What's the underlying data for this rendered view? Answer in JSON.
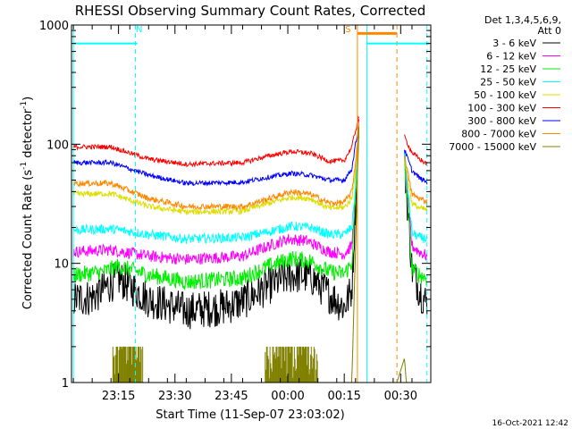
{
  "chart_data": {
    "type": "line",
    "title": "RHESSI Observing Summary Count Rates, Corrected",
    "xlabel": "Start Time (11-Sep-07 23:03:02)",
    "ylabel_parts": [
      "Corrected Count Rate (s",
      "-1",
      " detector",
      "-1",
      ")"
    ],
    "y_scale": "log",
    "ylim": [
      1,
      1000
    ],
    "y_ticks": [
      {
        "value": 1,
        "label": "1"
      },
      {
        "value": 10,
        "label": "10"
      },
      {
        "value": 100,
        "label": "100"
      },
      {
        "value": 1000,
        "label": "1000"
      }
    ],
    "x_range_min": [
      -0.5,
      95
    ],
    "x_ticks": [
      {
        "value": 12,
        "label": "23:15"
      },
      {
        "value": 27,
        "label": "23:30"
      },
      {
        "value": 42,
        "label": "23:45"
      },
      {
        "value": 57,
        "label": "00:00"
      },
      {
        "value": 72,
        "label": "00:15"
      },
      {
        "value": 87,
        "label": "00:30"
      }
    ],
    "legend_header": [
      "Det 1,3,4,5,6,9,",
      "Att 0"
    ],
    "series": [
      {
        "name": "3 - 6 keV",
        "color": "#000000",
        "noise": 0.16,
        "points_a": [
          [
            0,
            5.0
          ],
          [
            5,
            5.2
          ],
          [
            12,
            7.5
          ],
          [
            20,
            5.0
          ],
          [
            30,
            4.0
          ],
          [
            40,
            4.3
          ],
          [
            45,
            4.8
          ],
          [
            52,
            6.5
          ],
          [
            58,
            8.0
          ],
          [
            63,
            7.8
          ],
          [
            68,
            5.5
          ],
          [
            72,
            4.3
          ],
          [
            74,
            6.0
          ],
          [
            75,
            30.0
          ],
          [
            76,
            170.0
          ]
        ],
        "points_b": [
          [
            88,
            70.0
          ],
          [
            90,
            9.0
          ],
          [
            92,
            6.0
          ],
          [
            94,
            4.5
          ]
        ]
      },
      {
        "name": "6 - 12 keV",
        "color": "#ff00ff",
        "noise": 0.05,
        "points_a": [
          [
            0,
            12.5
          ],
          [
            10,
            13.0
          ],
          [
            20,
            11.5
          ],
          [
            30,
            10.8
          ],
          [
            45,
            11.5
          ],
          [
            52,
            14.0
          ],
          [
            57,
            16.0
          ],
          [
            62,
            15.5
          ],
          [
            68,
            12.5
          ],
          [
            72,
            12.0
          ],
          [
            74,
            14.0
          ],
          [
            75,
            40.0
          ],
          [
            76,
            170.0
          ]
        ],
        "points_b": [
          [
            88,
            80.0
          ],
          [
            90,
            14.0
          ],
          [
            92,
            12.5
          ],
          [
            94,
            11.5
          ]
        ]
      },
      {
        "name": "12 - 25 keV",
        "color": "#00ee00",
        "noise": 0.07,
        "points_a": [
          [
            0,
            8.0
          ],
          [
            8,
            8.5
          ],
          [
            12,
            9.5
          ],
          [
            20,
            8.0
          ],
          [
            30,
            7.0
          ],
          [
            45,
            7.5
          ],
          [
            52,
            9.5
          ],
          [
            58,
            11.0
          ],
          [
            63,
            10.5
          ],
          [
            68,
            8.5
          ],
          [
            72,
            8.2
          ],
          [
            74,
            10.0
          ],
          [
            75,
            35.0
          ],
          [
            76,
            150.0
          ]
        ],
        "points_b": [
          [
            88,
            75.0
          ],
          [
            90,
            9.0
          ],
          [
            92,
            8.0
          ],
          [
            94,
            7.5
          ]
        ]
      },
      {
        "name": "25 - 50 keV",
        "color": "#00ffff",
        "noise": 0.04,
        "points_a": [
          [
            0,
            19.0
          ],
          [
            10,
            19.5
          ],
          [
            20,
            17.5
          ],
          [
            30,
            16.0
          ],
          [
            45,
            16.5
          ],
          [
            52,
            18.5
          ],
          [
            58,
            20.5
          ],
          [
            63,
            20.0
          ],
          [
            68,
            17.5
          ],
          [
            72,
            17.5
          ],
          [
            74,
            20.0
          ],
          [
            75,
            45.0
          ],
          [
            76,
            175.0
          ]
        ],
        "points_b": [
          [
            88,
            85.0
          ],
          [
            90,
            18.0
          ],
          [
            92,
            16.5
          ],
          [
            94,
            16.0
          ]
        ]
      },
      {
        "name": "50 - 100 keV",
        "color": "#dddd00",
        "noise": 0.025,
        "points_a": [
          [
            0,
            38.0
          ],
          [
            10,
            38.5
          ],
          [
            20,
            30.0
          ],
          [
            30,
            27.0
          ],
          [
            45,
            27.5
          ],
          [
            52,
            32.0
          ],
          [
            58,
            36.0
          ],
          [
            63,
            35.0
          ],
          [
            68,
            29.0
          ],
          [
            72,
            29.5
          ],
          [
            74,
            35.0
          ],
          [
            75,
            60.0
          ],
          [
            76,
            165.0
          ]
        ],
        "points_b": [
          [
            88,
            75.0
          ],
          [
            90,
            32.0
          ],
          [
            92,
            29.0
          ],
          [
            94,
            28.0
          ]
        ]
      },
      {
        "name": "100 - 300 keV",
        "color": "#ff0000",
        "noise": 0.02,
        "points_a": [
          [
            0,
            95.0
          ],
          [
            10,
            95.0
          ],
          [
            20,
            75.0
          ],
          [
            30,
            68.0
          ],
          [
            45,
            70.0
          ],
          [
            52,
            80.0
          ],
          [
            58,
            87.0
          ],
          [
            63,
            84.0
          ],
          [
            68,
            72.0
          ],
          [
            72,
            73.0
          ],
          [
            74,
            95.0
          ],
          [
            75,
            130.0
          ],
          [
            76,
            175.0
          ]
        ],
        "points_b": [
          [
            88,
            115.0
          ],
          [
            90,
            85.0
          ],
          [
            92,
            75.0
          ],
          [
            94,
            68.0
          ]
        ]
      },
      {
        "name": "300 - 800 keV",
        "color": "#0000ff",
        "noise": 0.02,
        "points_a": [
          [
            0,
            70.0
          ],
          [
            10,
            70.0
          ],
          [
            20,
            55.0
          ],
          [
            30,
            47.0
          ],
          [
            45,
            48.0
          ],
          [
            52,
            53.0
          ],
          [
            58,
            57.0
          ],
          [
            63,
            55.0
          ],
          [
            68,
            50.0
          ],
          [
            72,
            50.0
          ],
          [
            74,
            62.0
          ],
          [
            75,
            100.0
          ],
          [
            76,
            150.0
          ]
        ],
        "points_b": [
          [
            88,
            90.0
          ],
          [
            90,
            60.0
          ],
          [
            92,
            52.0
          ],
          [
            94,
            48.0
          ]
        ]
      },
      {
        "name": "800 - 7000 keV",
        "color": "#ff8800",
        "noise": 0.025,
        "points_a": [
          [
            0,
            47.0
          ],
          [
            10,
            47.0
          ],
          [
            20,
            35.0
          ],
          [
            30,
            30.0
          ],
          [
            45,
            30.0
          ],
          [
            52,
            35.0
          ],
          [
            58,
            40.0
          ],
          [
            63,
            38.0
          ],
          [
            68,
            32.0
          ],
          [
            72,
            32.5
          ],
          [
            74,
            40.0
          ],
          [
            75,
            70.0
          ],
          [
            76,
            160.0
          ]
        ],
        "points_b": [
          [
            88,
            80.0
          ],
          [
            90,
            38.0
          ],
          [
            92,
            35.0
          ],
          [
            94,
            33.0
          ]
        ]
      },
      {
        "name": "7000 - 15000 keV",
        "color": "#808000",
        "noise": 0,
        "points_a": [
          [
            0,
            1.0
          ],
          [
            74,
            1.0
          ],
          [
            76,
            180.0
          ]
        ],
        "points_b": [
          [
            86,
            1.0
          ],
          [
            88,
            1.6
          ],
          [
            88.5,
            1.0
          ],
          [
            94,
            1.0
          ]
        ]
      }
    ],
    "bursts": [
      {
        "x0": 10.5,
        "x1": 18.5,
        "y": 2.0
      },
      {
        "x0": 51.0,
        "x1": 65.0,
        "y": 2.0
      }
    ],
    "annotations": [
      {
        "label": "N",
        "x": 17.5,
        "color": "#00ffff"
      },
      {
        "label": "S",
        "x": 73.0,
        "color": "#ff8800"
      }
    ],
    "vlines": [
      {
        "x": 0.0,
        "color": "#00ffff",
        "style": "solid"
      },
      {
        "x": 16.5,
        "color": "#00ffff",
        "style": "dashed"
      },
      {
        "x": 75.5,
        "color": "#ff8800",
        "style": "solid"
      },
      {
        "x": 78.0,
        "color": "#00ffff",
        "style": "solid"
      },
      {
        "x": 86.0,
        "color": "#ff8800",
        "style": "dashed"
      },
      {
        "x": 94.0,
        "color": "#00ffff",
        "style": "dashed"
      }
    ],
    "hbars": [
      {
        "x0": 0.0,
        "x1": 17.0,
        "y": 700,
        "color": "#00ffff",
        "thickness": 2
      },
      {
        "x0": 75.5,
        "x1": 86.0,
        "y": 850,
        "color": "#ff8800",
        "thickness": 3
      },
      {
        "x0": 78.0,
        "x1": 94.5,
        "y": 700,
        "color": "#00ffff",
        "thickness": 2
      }
    ],
    "gap_band": {
      "x0": 75.5,
      "x1": 78.0,
      "color": "#ff8800"
    },
    "timestamp": "16-Oct-2021 12:42",
    "legend_placement": "top-right",
    "grid": false
  }
}
